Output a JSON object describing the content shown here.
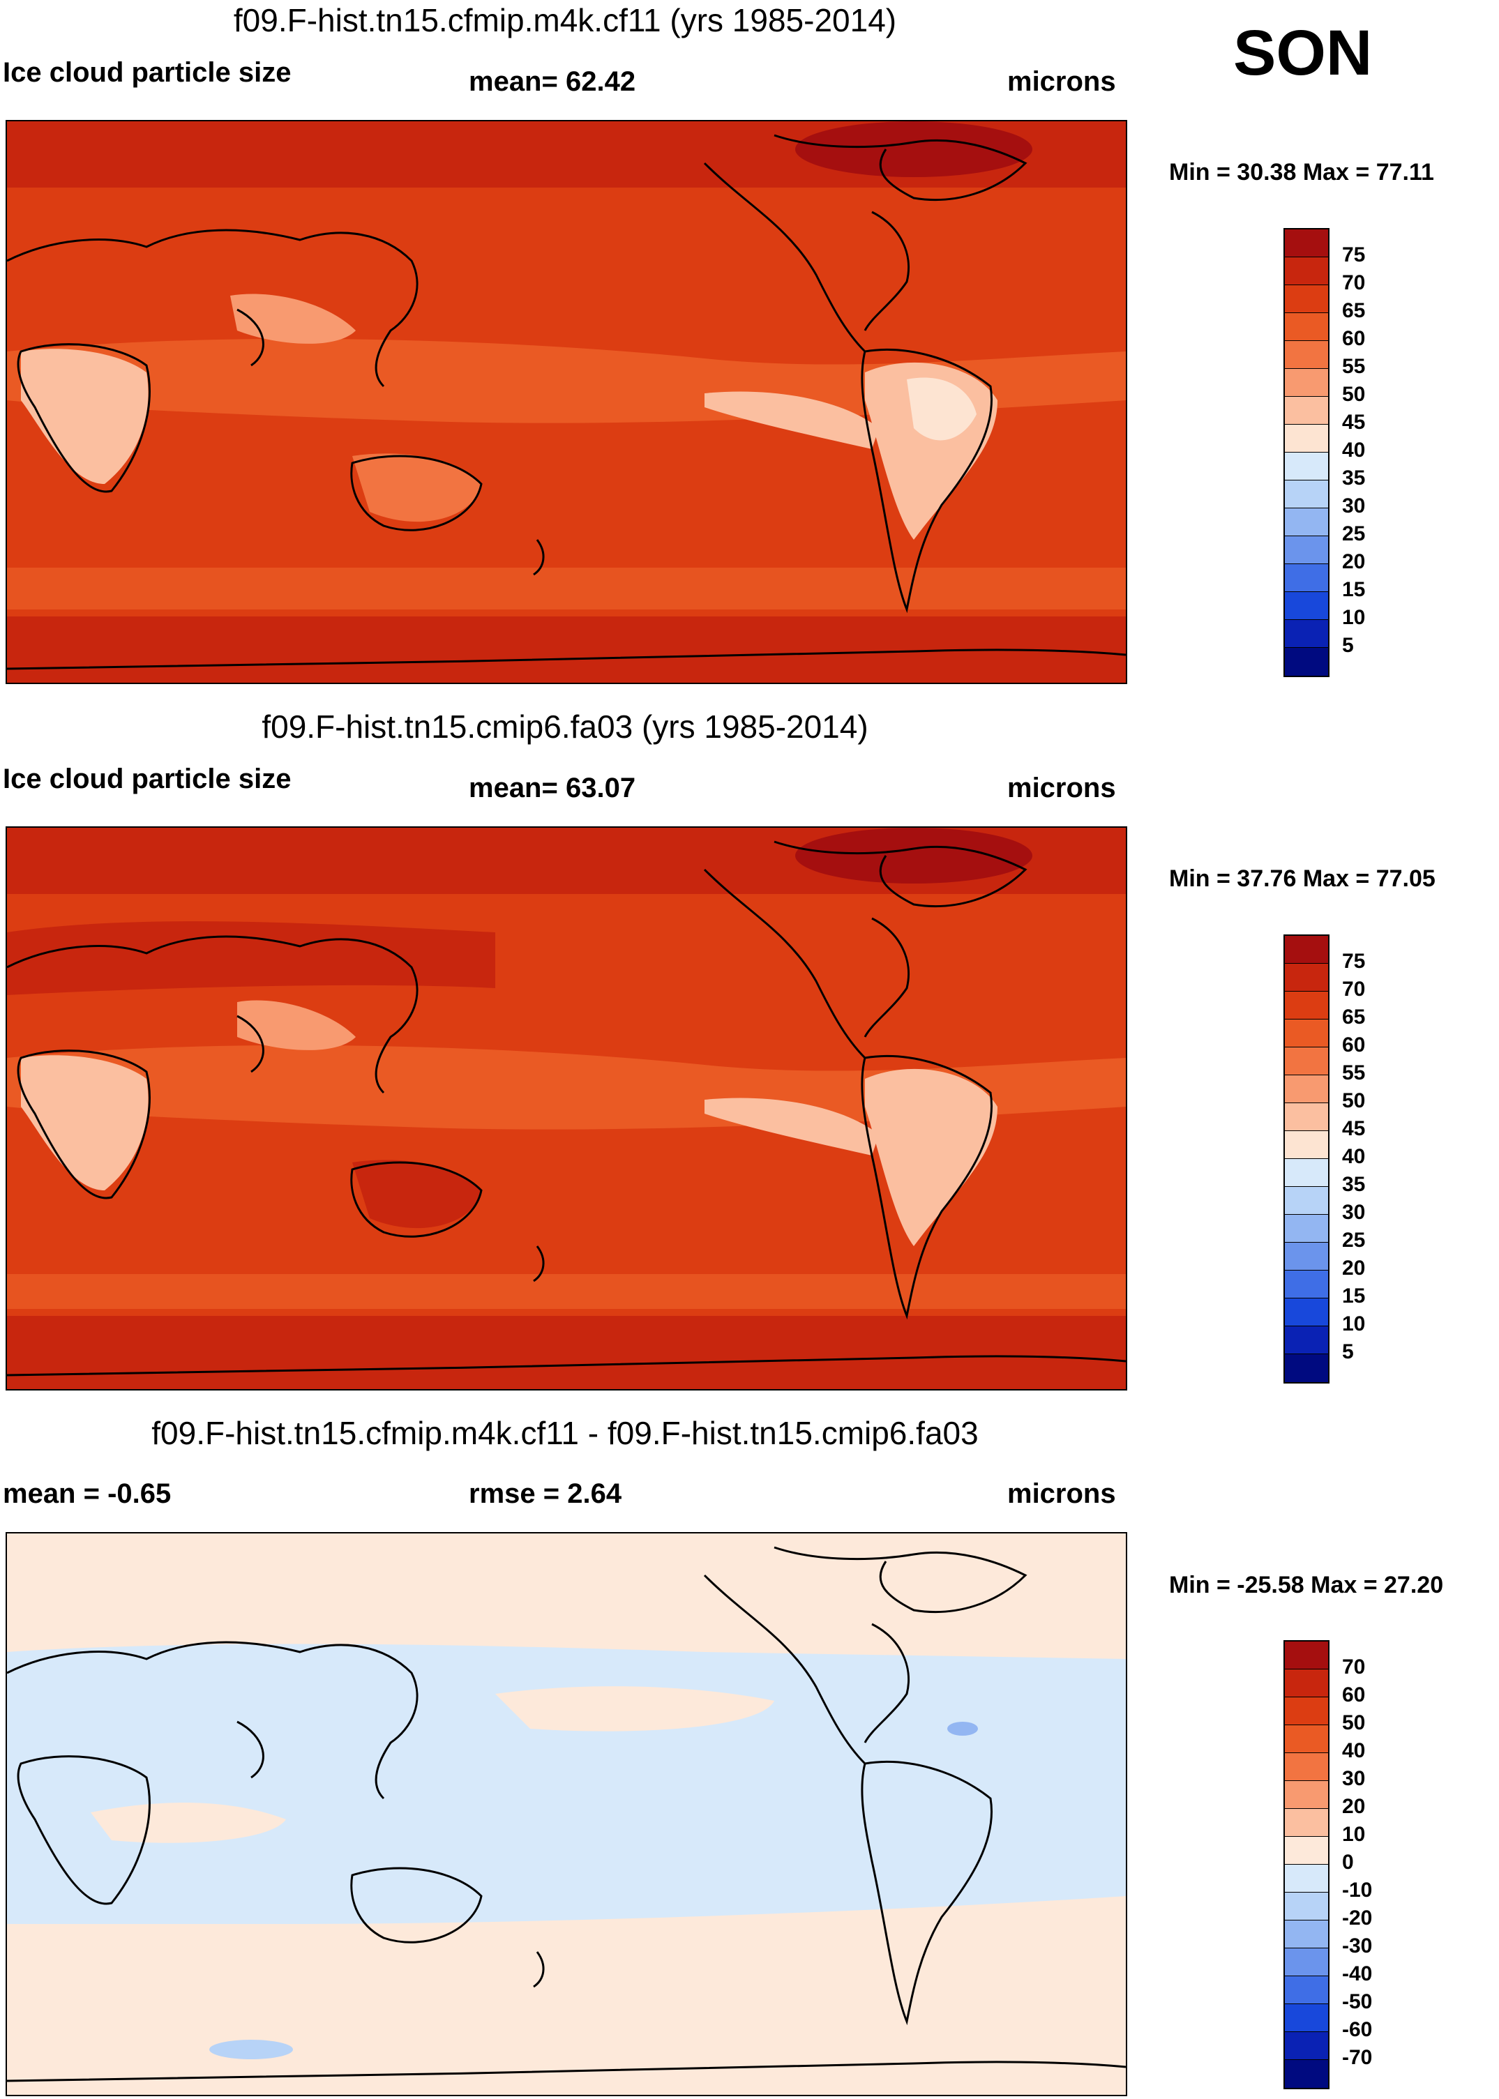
{
  "season": "SON",
  "panels": [
    {
      "title": "f09.F-hist.tn15.cfmip.m4k.cf11 (yrs 1985-2014)",
      "left_label": "Ice cloud particle size",
      "center_label": "mean=  62.42",
      "right_label": "microns",
      "minmax": "Min =  30.38 Max =  77.11",
      "colorbar_key": "absolute"
    },
    {
      "title": "f09.F-hist.tn15.cmip6.fa03 (yrs 1985-2014)",
      "left_label": "Ice cloud particle size",
      "center_label": "mean=  63.07",
      "right_label": "microns",
      "minmax": "Min =  37.76 Max =  77.05",
      "colorbar_key": "absolute"
    },
    {
      "title": "f09.F-hist.tn15.cfmip.m4k.cf11 - f09.F-hist.tn15.cmip6.fa03",
      "left_label": "mean =  -0.65",
      "center_label": "rmse =   2.64",
      "right_label": "microns",
      "minmax": "Min = -25.58 Max =  27.20",
      "colorbar_key": "difference"
    }
  ],
  "colorbars": {
    "absolute": {
      "labels": [
        "75",
        "70",
        "65",
        "60",
        "55",
        "50",
        "45",
        "40",
        "35",
        "30",
        "25",
        "20",
        "15",
        "10",
        "5"
      ],
      "colors": [
        "#a50f0f",
        "#c8260e",
        "#dc3d12",
        "#ea5a24",
        "#f27441",
        "#f89a70",
        "#fbbfa0",
        "#fde4d2",
        "#d7e9fa",
        "#b7d3f7",
        "#93b6f2",
        "#6b94ec",
        "#3f6ee6",
        "#1848db",
        "#0a22b4",
        "#000a80"
      ]
    },
    "difference": {
      "labels": [
        "70",
        "60",
        "50",
        "40",
        "30",
        "20",
        "10",
        "0",
        "-10",
        "-20",
        "-30",
        "-40",
        "-50",
        "-60",
        "-70"
      ],
      "colors": [
        "#a50f0f",
        "#c8260e",
        "#dc3d12",
        "#ea5a24",
        "#f27441",
        "#f89a70",
        "#fbbfa0",
        "#fde9da",
        "#d7e9fa",
        "#b7d3f7",
        "#93b6f2",
        "#6b94ec",
        "#3f6ee6",
        "#1848db",
        "#0a22b4",
        "#000a80"
      ]
    }
  },
  "chart_data": [
    {
      "type": "heatmap",
      "title": "f09.F-hist.tn15.cfmip.m4k.cf11 (yrs 1985-2014)",
      "variable": "Ice cloud particle size",
      "units": "microns",
      "mean": 62.42,
      "min": 30.38,
      "max": 77.11,
      "levels": [
        5,
        10,
        15,
        20,
        25,
        30,
        35,
        40,
        45,
        50,
        55,
        60,
        65,
        70,
        75
      ],
      "season": "SON"
    },
    {
      "type": "heatmap",
      "title": "f09.F-hist.tn15.cmip6.fa03 (yrs 1985-2014)",
      "variable": "Ice cloud particle size",
      "units": "microns",
      "mean": 63.07,
      "min": 37.76,
      "max": 77.05,
      "levels": [
        5,
        10,
        15,
        20,
        25,
        30,
        35,
        40,
        45,
        50,
        55,
        60,
        65,
        70,
        75
      ],
      "season": "SON"
    },
    {
      "type": "heatmap",
      "title": "f09.F-hist.tn15.cfmip.m4k.cf11 - f09.F-hist.tn15.cmip6.fa03",
      "units": "microns",
      "mean": -0.65,
      "rmse": 2.64,
      "min": -25.58,
      "max": 27.2,
      "levels": [
        -70,
        -60,
        -50,
        -40,
        -30,
        -20,
        -10,
        0,
        10,
        20,
        30,
        40,
        50,
        60,
        70
      ],
      "season": "SON"
    }
  ]
}
